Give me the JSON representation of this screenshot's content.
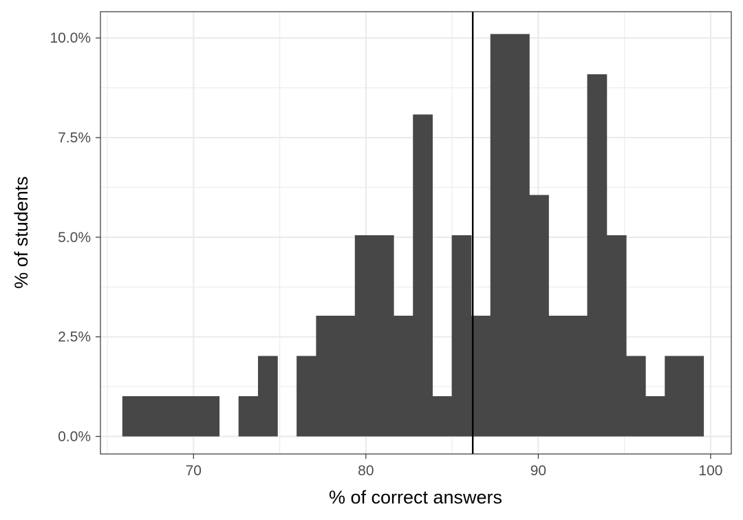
{
  "chart_data": {
    "type": "bar",
    "subtype": "histogram",
    "title": "",
    "xlabel": "% of correct answers",
    "ylabel": "% of students",
    "xlim": [
      64.6,
      101.2
    ],
    "ylim": [
      -0.0044,
      0.1066
    ],
    "x_ticks": [
      70,
      80,
      90,
      100
    ],
    "x_minor_ticks": [
      65,
      75,
      85,
      95
    ],
    "y_ticks": [
      0,
      0.025,
      0.05,
      0.075,
      0.1
    ],
    "y_tick_labels": [
      "0.0%",
      "2.5%",
      "5.0%",
      "7.5%",
      "10.0%"
    ],
    "y_minor_ticks": [
      0.0125,
      0.0375,
      0.0625,
      0.0875
    ],
    "bin_width": 1.124,
    "bins": [
      {
        "start": 65.87,
        "value": 0.0101
      },
      {
        "start": 66.99,
        "value": 0.0101
      },
      {
        "start": 68.12,
        "value": 0.0101
      },
      {
        "start": 69.24,
        "value": 0.0101
      },
      {
        "start": 70.36,
        "value": 0.0101
      },
      {
        "start": 71.49,
        "value": 0.0
      },
      {
        "start": 72.61,
        "value": 0.0101
      },
      {
        "start": 73.74,
        "value": 0.0202
      },
      {
        "start": 74.86,
        "value": 0.0
      },
      {
        "start": 75.98,
        "value": 0.0202
      },
      {
        "start": 77.11,
        "value": 0.0303
      },
      {
        "start": 78.23,
        "value": 0.0303
      },
      {
        "start": 79.36,
        "value": 0.0505
      },
      {
        "start": 80.48,
        "value": 0.0505
      },
      {
        "start": 81.6,
        "value": 0.0303
      },
      {
        "start": 82.73,
        "value": 0.0808
      },
      {
        "start": 83.85,
        "value": 0.0101
      },
      {
        "start": 84.98,
        "value": 0.0505
      },
      {
        "start": 86.1,
        "value": 0.0303
      },
      {
        "start": 87.22,
        "value": 0.101
      },
      {
        "start": 88.35,
        "value": 0.101
      },
      {
        "start": 89.47,
        "value": 0.0606
      },
      {
        "start": 90.6,
        "value": 0.0303
      },
      {
        "start": 91.72,
        "value": 0.0303
      },
      {
        "start": 92.84,
        "value": 0.0909
      },
      {
        "start": 93.97,
        "value": 0.0505
      },
      {
        "start": 95.09,
        "value": 0.0202
      },
      {
        "start": 96.22,
        "value": 0.0101
      },
      {
        "start": 97.34,
        "value": 0.0202
      },
      {
        "start": 98.46,
        "value": 0.0202
      }
    ],
    "vline": {
      "x": 86.2
    },
    "grid": true,
    "legend": "none",
    "colors": {
      "bar": "#474747",
      "vline": "#000000",
      "grid": "#ebebeb",
      "panel_border": "#333333",
      "tick_label": "#4d4d4d",
      "axis_title": "#000000"
    }
  }
}
